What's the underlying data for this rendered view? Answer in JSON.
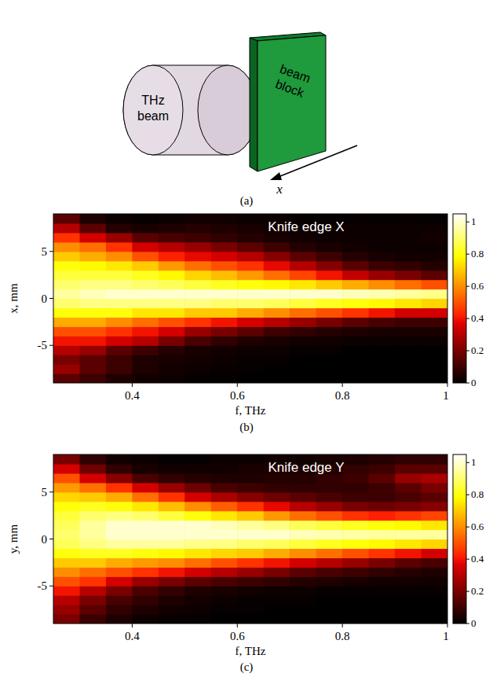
{
  "diagram": {
    "beam_label": "THz beam",
    "block_label": "beam block",
    "axis_label": "x",
    "caption": "(a)"
  },
  "chart_data": [
    {
      "type": "heatmap",
      "title": "Knife edge X",
      "caption": "(b)",
      "x_label": "f, THz",
      "y_label": "x, mm",
      "xlim": [
        0.25,
        1
      ],
      "xticks": [
        0.4,
        0.6,
        0.8,
        1
      ],
      "ylim": [
        -9,
        9
      ],
      "yticks": [
        -5,
        0,
        5
      ],
      "color": "hot",
      "x_edges": [
        0.25,
        0.3,
        0.35,
        0.4,
        0.45,
        0.5,
        0.55,
        0.6,
        0.65,
        0.7,
        0.75,
        0.8,
        0.85,
        0.9,
        0.95,
        1
      ],
      "y_edges": [
        -9,
        -8,
        -7,
        -6,
        -5,
        -4,
        -3,
        -2,
        -1,
        0,
        1,
        2,
        3,
        4,
        5,
        6,
        7,
        8,
        9
      ],
      "z": [
        [
          0.15,
          0.1,
          0.05,
          0.03,
          0.02,
          0.01,
          0.01,
          0,
          0,
          0,
          0,
          0,
          0,
          0,
          0
        ],
        [
          0.25,
          0.15,
          0.1,
          0.05,
          0.03,
          0.02,
          0.01,
          0.01,
          0,
          0,
          0,
          0,
          0,
          0,
          0
        ],
        [
          0.2,
          0.15,
          0.1,
          0.05,
          0.04,
          0.03,
          0.02,
          0.01,
          0.01,
          0,
          0,
          0,
          0,
          0,
          0
        ],
        [
          0.3,
          0.25,
          0.15,
          0.1,
          0.06,
          0.04,
          0.03,
          0.02,
          0.02,
          0.01,
          0.01,
          0,
          0,
          0,
          0
        ],
        [
          0.4,
          0.4,
          0.35,
          0.3,
          0.2,
          0.12,
          0.08,
          0.05,
          0.04,
          0.03,
          0.03,
          0.02,
          0.02,
          0.02,
          0.02
        ],
        [
          0.5,
          0.5,
          0.45,
          0.4,
          0.35,
          0.25,
          0.2,
          0.15,
          0.1,
          0.08,
          0.06,
          0.05,
          0.04,
          0.04,
          0.04
        ],
        [
          0.65,
          0.65,
          0.6,
          0.55,
          0.5,
          0.45,
          0.4,
          0.35,
          0.3,
          0.25,
          0.2,
          0.15,
          0.12,
          0.1,
          0.1
        ],
        [
          0.8,
          0.8,
          0.8,
          0.75,
          0.75,
          0.7,
          0.7,
          0.65,
          0.6,
          0.55,
          0.5,
          0.45,
          0.4,
          0.35,
          0.35
        ],
        [
          0.9,
          0.92,
          0.92,
          0.92,
          0.92,
          0.92,
          0.9,
          0.9,
          0.88,
          0.85,
          0.82,
          0.8,
          0.78,
          0.75,
          0.72
        ],
        [
          0.95,
          0.98,
          1,
          1,
          1,
          1,
          1,
          1,
          1,
          1,
          1,
          0.98,
          0.97,
          0.95,
          0.93
        ],
        [
          0.9,
          0.92,
          0.92,
          0.9,
          0.88,
          0.85,
          0.82,
          0.8,
          0.78,
          0.75,
          0.7,
          0.65,
          0.6,
          0.55,
          0.5
        ],
        [
          0.85,
          0.85,
          0.85,
          0.82,
          0.78,
          0.72,
          0.68,
          0.62,
          0.55,
          0.48,
          0.4,
          0.32,
          0.25,
          0.2,
          0.15
        ],
        [
          0.8,
          0.78,
          0.75,
          0.7,
          0.62,
          0.55,
          0.5,
          0.45,
          0.38,
          0.3,
          0.22,
          0.15,
          0.1,
          0.08,
          0.06
        ],
        [
          0.7,
          0.65,
          0.6,
          0.5,
          0.42,
          0.38,
          0.35,
          0.3,
          0.22,
          0.15,
          0.1,
          0.06,
          0.04,
          0.03,
          0.03
        ],
        [
          0.6,
          0.55,
          0.45,
          0.35,
          0.3,
          0.25,
          0.2,
          0.15,
          0.1,
          0.06,
          0.04,
          0.03,
          0.02,
          0.02,
          0.02
        ],
        [
          0.45,
          0.35,
          0.25,
          0.15,
          0.12,
          0.1,
          0.08,
          0.06,
          0.04,
          0.03,
          0.02,
          0.02,
          0.02,
          0.02,
          0.03
        ],
        [
          0.3,
          0.15,
          0.06,
          0.04,
          0.05,
          0.06,
          0.05,
          0.04,
          0.03,
          0.02,
          0.02,
          0.02,
          0.02,
          0.02,
          0.02
        ],
        [
          0.15,
          0.05,
          0.02,
          0.01,
          0.02,
          0.03,
          0.03,
          0.02,
          0.02,
          0.01,
          0.01,
          0.01,
          0.01,
          0.01,
          0.01
        ]
      ],
      "colorbar": {
        "range": [
          0,
          1.05
        ],
        "ticks": [
          0,
          0.2,
          0.4,
          0.6,
          0.8,
          1
        ]
      }
    },
    {
      "type": "heatmap",
      "title": "Knife edge Y",
      "caption": "(c)",
      "x_label": "f, THz",
      "y_label": "y, mm",
      "xlim": [
        0.25,
        1
      ],
      "xticks": [
        0.4,
        0.6,
        0.8,
        1
      ],
      "ylim": [
        -9,
        9
      ],
      "yticks": [
        -5,
        0,
        5
      ],
      "color": "hot",
      "x_edges": [
        0.25,
        0.3,
        0.35,
        0.4,
        0.45,
        0.5,
        0.55,
        0.6,
        0.65,
        0.7,
        0.75,
        0.8,
        0.85,
        0.9,
        0.95,
        1
      ],
      "y_edges": [
        -9,
        -8,
        -7,
        -6,
        -5,
        -4,
        -3,
        -2,
        -1,
        0,
        1,
        2,
        3,
        4,
        5,
        6,
        7,
        8,
        9
      ],
      "z": [
        [
          0.2,
          0.1,
          0.05,
          0.02,
          0.01,
          0.01,
          0,
          0,
          0,
          0,
          0,
          0,
          0,
          0,
          0
        ],
        [
          0.25,
          0.15,
          0.08,
          0.05,
          0.03,
          0.02,
          0.01,
          0.01,
          0,
          0,
          0,
          0,
          0,
          0,
          0
        ],
        [
          0.3,
          0.2,
          0.12,
          0.08,
          0.05,
          0.03,
          0.02,
          0.01,
          0.01,
          0.01,
          0,
          0,
          0,
          0,
          0
        ],
        [
          0.4,
          0.3,
          0.2,
          0.12,
          0.08,
          0.05,
          0.04,
          0.03,
          0.02,
          0.02,
          0.01,
          0.01,
          0.01,
          0.01,
          0.01
        ],
        [
          0.5,
          0.45,
          0.35,
          0.25,
          0.2,
          0.15,
          0.12,
          0.1,
          0.08,
          0.06,
          0.05,
          0.04,
          0.03,
          0.03,
          0.03
        ],
        [
          0.6,
          0.55,
          0.5,
          0.45,
          0.4,
          0.35,
          0.3,
          0.25,
          0.2,
          0.15,
          0.12,
          0.1,
          0.08,
          0.06,
          0.05
        ],
        [
          0.7,
          0.7,
          0.65,
          0.62,
          0.6,
          0.55,
          0.5,
          0.45,
          0.4,
          0.35,
          0.3,
          0.25,
          0.2,
          0.15,
          0.12
        ],
        [
          0.8,
          0.82,
          0.82,
          0.8,
          0.78,
          0.75,
          0.72,
          0.7,
          0.65,
          0.6,
          0.55,
          0.5,
          0.45,
          0.4,
          0.35
        ],
        [
          0.88,
          0.92,
          0.95,
          0.95,
          0.95,
          0.93,
          0.92,
          0.9,
          0.88,
          0.85,
          0.82,
          0.8,
          0.78,
          0.75,
          0.72
        ],
        [
          0.9,
          0.95,
          1,
          1,
          1,
          1,
          1,
          1,
          1,
          0.98,
          0.97,
          0.96,
          0.95,
          0.95,
          0.95
        ],
        [
          0.88,
          0.95,
          1,
          1,
          1,
          1,
          0.98,
          0.95,
          0.92,
          0.88,
          0.85,
          0.82,
          0.8,
          0.78,
          0.75
        ],
        [
          0.85,
          0.9,
          0.92,
          0.9,
          0.85,
          0.8,
          0.75,
          0.7,
          0.62,
          0.55,
          0.5,
          0.45,
          0.42,
          0.45,
          0.48
        ],
        [
          0.8,
          0.82,
          0.8,
          0.75,
          0.68,
          0.6,
          0.52,
          0.45,
          0.38,
          0.3,
          0.25,
          0.2,
          0.18,
          0.2,
          0.22
        ],
        [
          0.72,
          0.7,
          0.65,
          0.55,
          0.45,
          0.35,
          0.28,
          0.22,
          0.18,
          0.15,
          0.12,
          0.1,
          0.1,
          0.12,
          0.15
        ],
        [
          0.62,
          0.55,
          0.45,
          0.35,
          0.25,
          0.18,
          0.12,
          0.1,
          0.08,
          0.08,
          0.08,
          0.08,
          0.1,
          0.15,
          0.2
        ],
        [
          0.5,
          0.35,
          0.22,
          0.12,
          0.08,
          0.06,
          0.05,
          0.05,
          0.06,
          0.06,
          0.08,
          0.1,
          0.15,
          0.25,
          0.28
        ],
        [
          0.35,
          0.18,
          0.08,
          0.04,
          0.03,
          0.03,
          0.03,
          0.04,
          0.05,
          0.05,
          0.06,
          0.08,
          0.1,
          0.15,
          0.15
        ],
        [
          0.2,
          0.08,
          0.03,
          0.02,
          0.01,
          0.01,
          0.02,
          0.02,
          0.03,
          0.03,
          0.04,
          0.05,
          0.06,
          0.08,
          0.08
        ]
      ],
      "colorbar": {
        "range": [
          0,
          1.05
        ],
        "ticks": [
          0,
          0.2,
          0.4,
          0.6,
          0.8,
          1
        ]
      }
    }
  ]
}
